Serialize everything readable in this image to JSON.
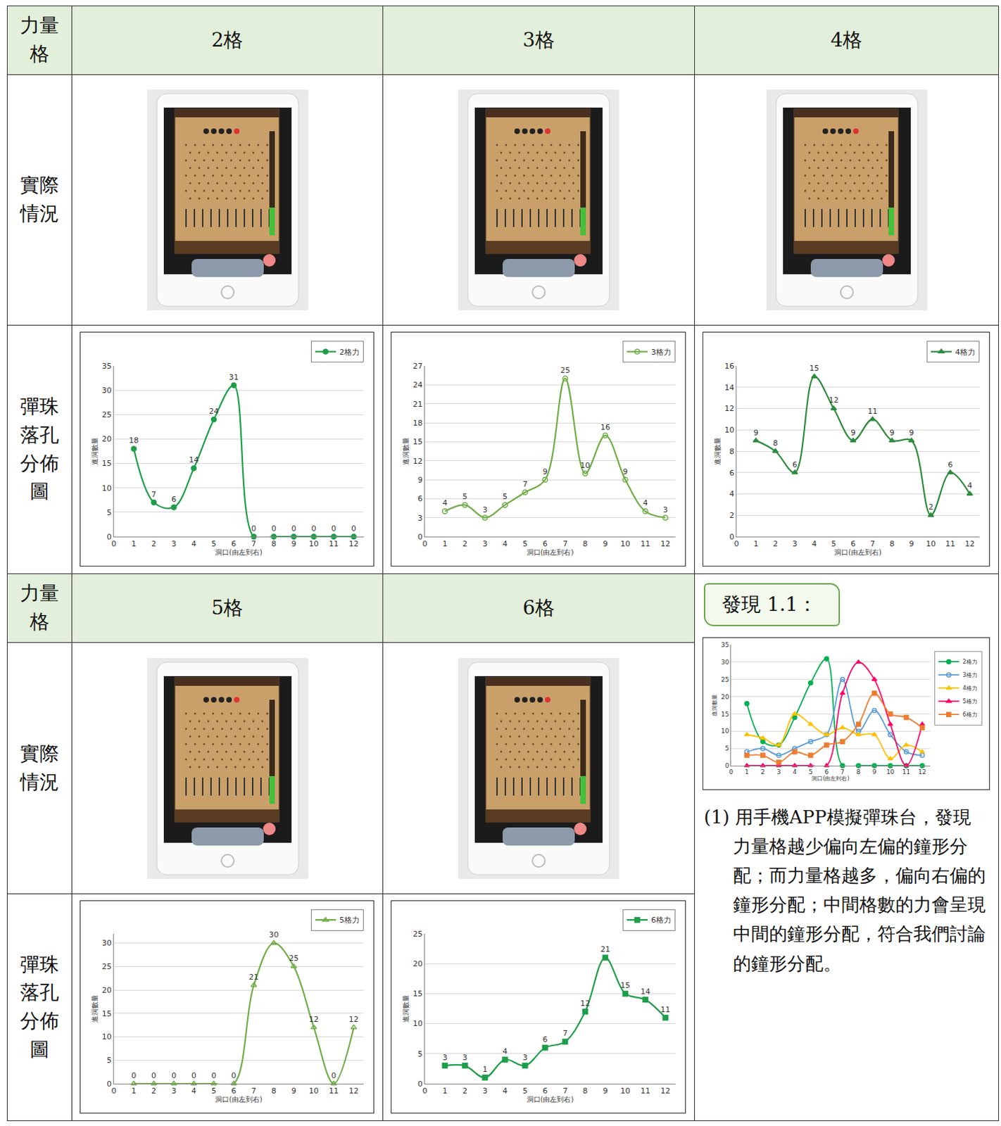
{
  "table": {
    "corner": "力量格",
    "rows": [
      "實際情況",
      "彈珠落孔分佈圖"
    ],
    "columns": [
      "2格",
      "3格",
      "4格",
      "5格",
      "6格"
    ]
  },
  "finding": {
    "title": "發現 1.1：",
    "text": "(1) 用手機APP模擬彈珠台，發現力量格越少偏向左偏的鐘形分配；而力量格越多，偏向右偏的鐘形分配；中間格數的力會呈現中間的鐘形分配，符合我們討論的鐘形分配。"
  },
  "chart_data": [
    {
      "type": "line",
      "x": [
        1,
        2,
        3,
        4,
        5,
        6,
        7,
        8,
        9,
        10,
        11,
        12
      ],
      "xlim": [
        0,
        12.5
      ],
      "xticks": [
        0,
        1,
        2,
        3,
        4,
        5,
        6,
        7,
        8,
        9,
        10,
        11,
        12
      ],
      "ylim": [
        0,
        35
      ],
      "yticks": [
        0,
        5,
        10,
        15,
        20,
        25,
        30,
        35
      ],
      "x_label": "洞口(由左到右)",
      "y_label": "進洞數量",
      "grid": true,
      "data_labels": true,
      "legend": "top right",
      "series": [
        {
          "name": "2格力",
          "color": "#1e9e4a",
          "marker": "circle",
          "line_style": "smooth",
          "values": [
            18,
            7,
            6,
            14,
            24,
            31,
            0,
            0,
            0,
            0,
            0,
            0
          ]
        }
      ]
    },
    {
      "type": "line",
      "x": [
        1,
        2,
        3,
        4,
        5,
        6,
        7,
        8,
        9,
        10,
        11,
        12
      ],
      "xlim": [
        0,
        12.5
      ],
      "xticks": [
        0,
        1,
        2,
        3,
        4,
        5,
        6,
        7,
        8,
        9,
        10,
        11,
        12
      ],
      "ylim": [
        0,
        27
      ],
      "yticks": [
        0,
        3,
        6,
        9,
        12,
        15,
        18,
        21,
        24,
        27
      ],
      "x_label": "洞口(由左到右)",
      "y_label": "進洞數量",
      "grid": true,
      "data_labels": true,
      "legend": "top right",
      "series": [
        {
          "name": "3格力",
          "color": "#70ad47",
          "marker": "circle-open",
          "line_style": "smooth",
          "values": [
            4,
            5,
            3,
            5,
            7,
            9,
            25,
            10,
            16,
            9,
            4,
            3
          ]
        }
      ]
    },
    {
      "type": "line",
      "x": [
        1,
        2,
        3,
        4,
        5,
        6,
        7,
        8,
        9,
        10,
        11,
        12
      ],
      "xlim": [
        0,
        12.5
      ],
      "xticks": [
        0,
        1,
        2,
        3,
        4,
        5,
        6,
        7,
        8,
        9,
        10,
        11,
        12
      ],
      "ylim": [
        0,
        16
      ],
      "yticks": [
        0,
        2,
        4,
        6,
        8,
        10,
        12,
        14,
        16
      ],
      "x_label": "洞口(由左到右)",
      "y_label": "進洞數量",
      "grid": true,
      "data_labels": true,
      "legend": "top right",
      "series": [
        {
          "name": "4格力",
          "color": "#2e8b3e",
          "marker": "triangle-up",
          "line_style": "smooth",
          "values": [
            9,
            8,
            6,
            15,
            12,
            9,
            11,
            9,
            9,
            2,
            6,
            4
          ]
        }
      ]
    },
    {
      "type": "line",
      "x": [
        1,
        2,
        3,
        4,
        5,
        6,
        7,
        8,
        9,
        10,
        11,
        12
      ],
      "xlim": [
        0,
        12.5
      ],
      "xticks": [
        0,
        1,
        2,
        3,
        4,
        5,
        6,
        7,
        8,
        9,
        10,
        11,
        12
      ],
      "ylim": [
        0,
        32
      ],
      "yticks": [
        0,
        5,
        10,
        15,
        20,
        25,
        30
      ],
      "x_label": "洞口(由左到右)",
      "y_label": "進洞數量",
      "grid": true,
      "data_labels": true,
      "legend": "top right",
      "series": [
        {
          "name": "5格力",
          "color": "#70ad47",
          "marker": "triangle-up-open",
          "line_style": "smooth",
          "values": [
            0,
            0,
            0,
            0,
            0,
            0,
            21,
            30,
            25,
            12,
            0,
            12
          ]
        }
      ]
    },
    {
      "type": "line",
      "x": [
        1,
        2,
        3,
        4,
        5,
        6,
        7,
        8,
        9,
        10,
        11,
        12
      ],
      "xlim": [
        0,
        12.5
      ],
      "xticks": [
        0,
        1,
        2,
        3,
        4,
        5,
        6,
        7,
        8,
        9,
        10,
        11,
        12
      ],
      "ylim": [
        0,
        25
      ],
      "yticks": [
        0,
        5,
        10,
        15,
        20,
        25
      ],
      "x_label": "洞口(由左到右)",
      "y_label": "進洞數量",
      "grid": true,
      "data_labels": true,
      "legend": "top right",
      "series": [
        {
          "name": "6格力",
          "color": "#1e9e4a",
          "marker": "square",
          "line_style": "smooth",
          "values": [
            3,
            3,
            1,
            4,
            3,
            6,
            7,
            12,
            21,
            15,
            14,
            11
          ]
        }
      ]
    },
    {
      "type": "line",
      "x": [
        1,
        2,
        3,
        4,
        5,
        6,
        7,
        8,
        9,
        10,
        11,
        12
      ],
      "xlim": [
        0,
        12.5
      ],
      "xticks": [
        0,
        1,
        2,
        3,
        4,
        5,
        6,
        7,
        8,
        9,
        10,
        11,
        12
      ],
      "ylim": [
        0,
        35
      ],
      "yticks": [
        0,
        5,
        10,
        15,
        20,
        25,
        30,
        35
      ],
      "x_label": "洞口(由左到右)",
      "y_label": "進洞數量",
      "grid": true,
      "data_labels": false,
      "legend": "right",
      "series": [
        {
          "name": "2格力",
          "color": "#00b050",
          "marker": "circle",
          "line_style": "smooth",
          "values": [
            18,
            7,
            6,
            14,
            24,
            31,
            0,
            0,
            0,
            0,
            0,
            0
          ]
        },
        {
          "name": "3格力",
          "color": "#5b9bd5",
          "marker": "circle-open",
          "line_style": "smooth",
          "values": [
            4,
            5,
            3,
            5,
            7,
            9,
            25,
            10,
            16,
            9,
            4,
            3
          ]
        },
        {
          "name": "4格力",
          "color": "#ffc000",
          "marker": "triangle-up",
          "line_style": "smooth",
          "values": [
            9,
            8,
            6,
            15,
            12,
            9,
            11,
            9,
            9,
            2,
            6,
            4
          ]
        },
        {
          "name": "5格力",
          "color": "#ff0066",
          "marker": "triangle-up",
          "line_style": "smooth",
          "values": [
            0,
            0,
            0,
            0,
            0,
            0,
            21,
            30,
            25,
            12,
            0,
            12
          ]
        },
        {
          "name": "6格力",
          "color": "#ed7d31",
          "marker": "square",
          "line_style": "smooth",
          "values": [
            3,
            3,
            1,
            4,
            3,
            6,
            7,
            12,
            21,
            15,
            14,
            11
          ]
        }
      ]
    }
  ]
}
